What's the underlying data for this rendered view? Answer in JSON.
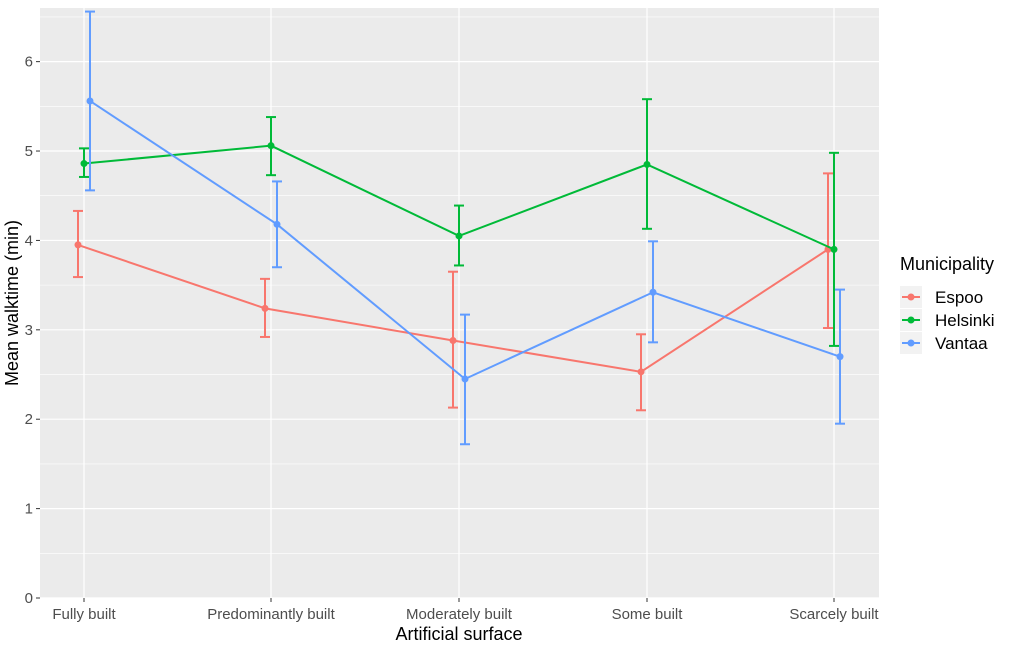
{
  "chart_data": {
    "type": "line",
    "xlabel": "Artificial surface",
    "ylabel": "Mean walktime (min)",
    "categories": [
      "Fully built",
      "Predominantly built",
      "Moderately built",
      "Some built",
      "Scarcely built"
    ],
    "ylim": [
      0,
      6.6
    ],
    "yticks": [
      0,
      1,
      2,
      3,
      4,
      5,
      6
    ],
    "grid": true,
    "background": "#ebebeb",
    "legend": {
      "title": "Municipality",
      "position": "right"
    },
    "series": [
      {
        "name": "Espoo",
        "color": "#f8766d",
        "values": [
          3.95,
          3.24,
          2.88,
          2.53,
          3.9
        ],
        "lower": [
          3.59,
          2.92,
          2.13,
          2.1,
          3.02
        ],
        "upper": [
          4.33,
          3.57,
          3.65,
          2.95,
          4.75
        ]
      },
      {
        "name": "Helsinki",
        "color": "#00ba38",
        "values": [
          4.86,
          5.06,
          4.05,
          4.85,
          3.9
        ],
        "lower": [
          4.71,
          4.73,
          3.72,
          4.13,
          2.82
        ],
        "upper": [
          5.03,
          5.38,
          4.39,
          5.58,
          4.98
        ]
      },
      {
        "name": "Vantaa",
        "color": "#619cff",
        "values": [
          5.56,
          4.18,
          2.45,
          3.42,
          2.7
        ],
        "lower": [
          4.56,
          3.7,
          1.72,
          2.86,
          1.95
        ],
        "upper": [
          6.56,
          4.66,
          3.17,
          3.99,
          3.45
        ]
      }
    ]
  }
}
